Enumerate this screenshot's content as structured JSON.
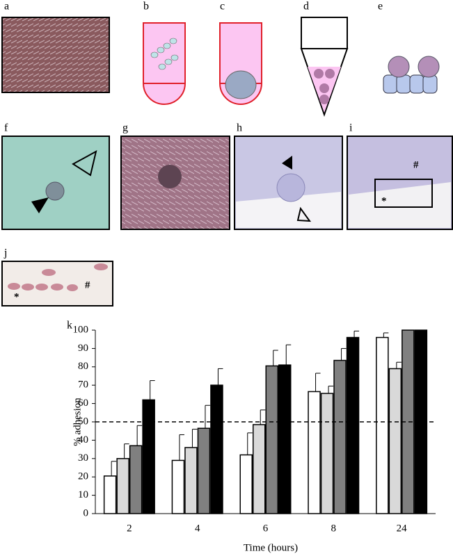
{
  "panels": [
    "a",
    "b",
    "c",
    "d",
    "e",
    "f",
    "g",
    "h",
    "i",
    "j"
  ],
  "annotations": {
    "i_hash": "#",
    "i_star": "*",
    "j_hash": "#",
    "j_star": "*"
  },
  "chart_data": {
    "type": "bar",
    "panel": "k",
    "ylabel": "% adhesion",
    "xlabel": "Time (hours)",
    "categories": [
      "2",
      "4",
      "6",
      "8",
      "24"
    ],
    "series": [
      {
        "color": "#ffffff",
        "values": [
          20.5,
          29,
          32,
          66.5,
          96
        ],
        "errors": [
          8,
          14,
          12,
          10,
          2.5
        ]
      },
      {
        "color": "#d9d9d9",
        "values": [
          30,
          36,
          48.5,
          65.5,
          79
        ],
        "errors": [
          8,
          10,
          8,
          4,
          3.5
        ]
      },
      {
        "color": "#808080",
        "values": [
          37,
          46.5,
          80.5,
          83.5,
          100
        ],
        "errors": [
          11,
          12.5,
          8.5,
          6.5,
          0
        ]
      },
      {
        "color": "#000000",
        "values": [
          62,
          70,
          81,
          96,
          100
        ],
        "errors": [
          10.5,
          9,
          11,
          3.5,
          0
        ]
      }
    ],
    "reference_line": 50,
    "ylim": [
      0,
      100
    ],
    "yticks": [
      0,
      10,
      20,
      30,
      40,
      50,
      60,
      70,
      80,
      90,
      100
    ]
  }
}
